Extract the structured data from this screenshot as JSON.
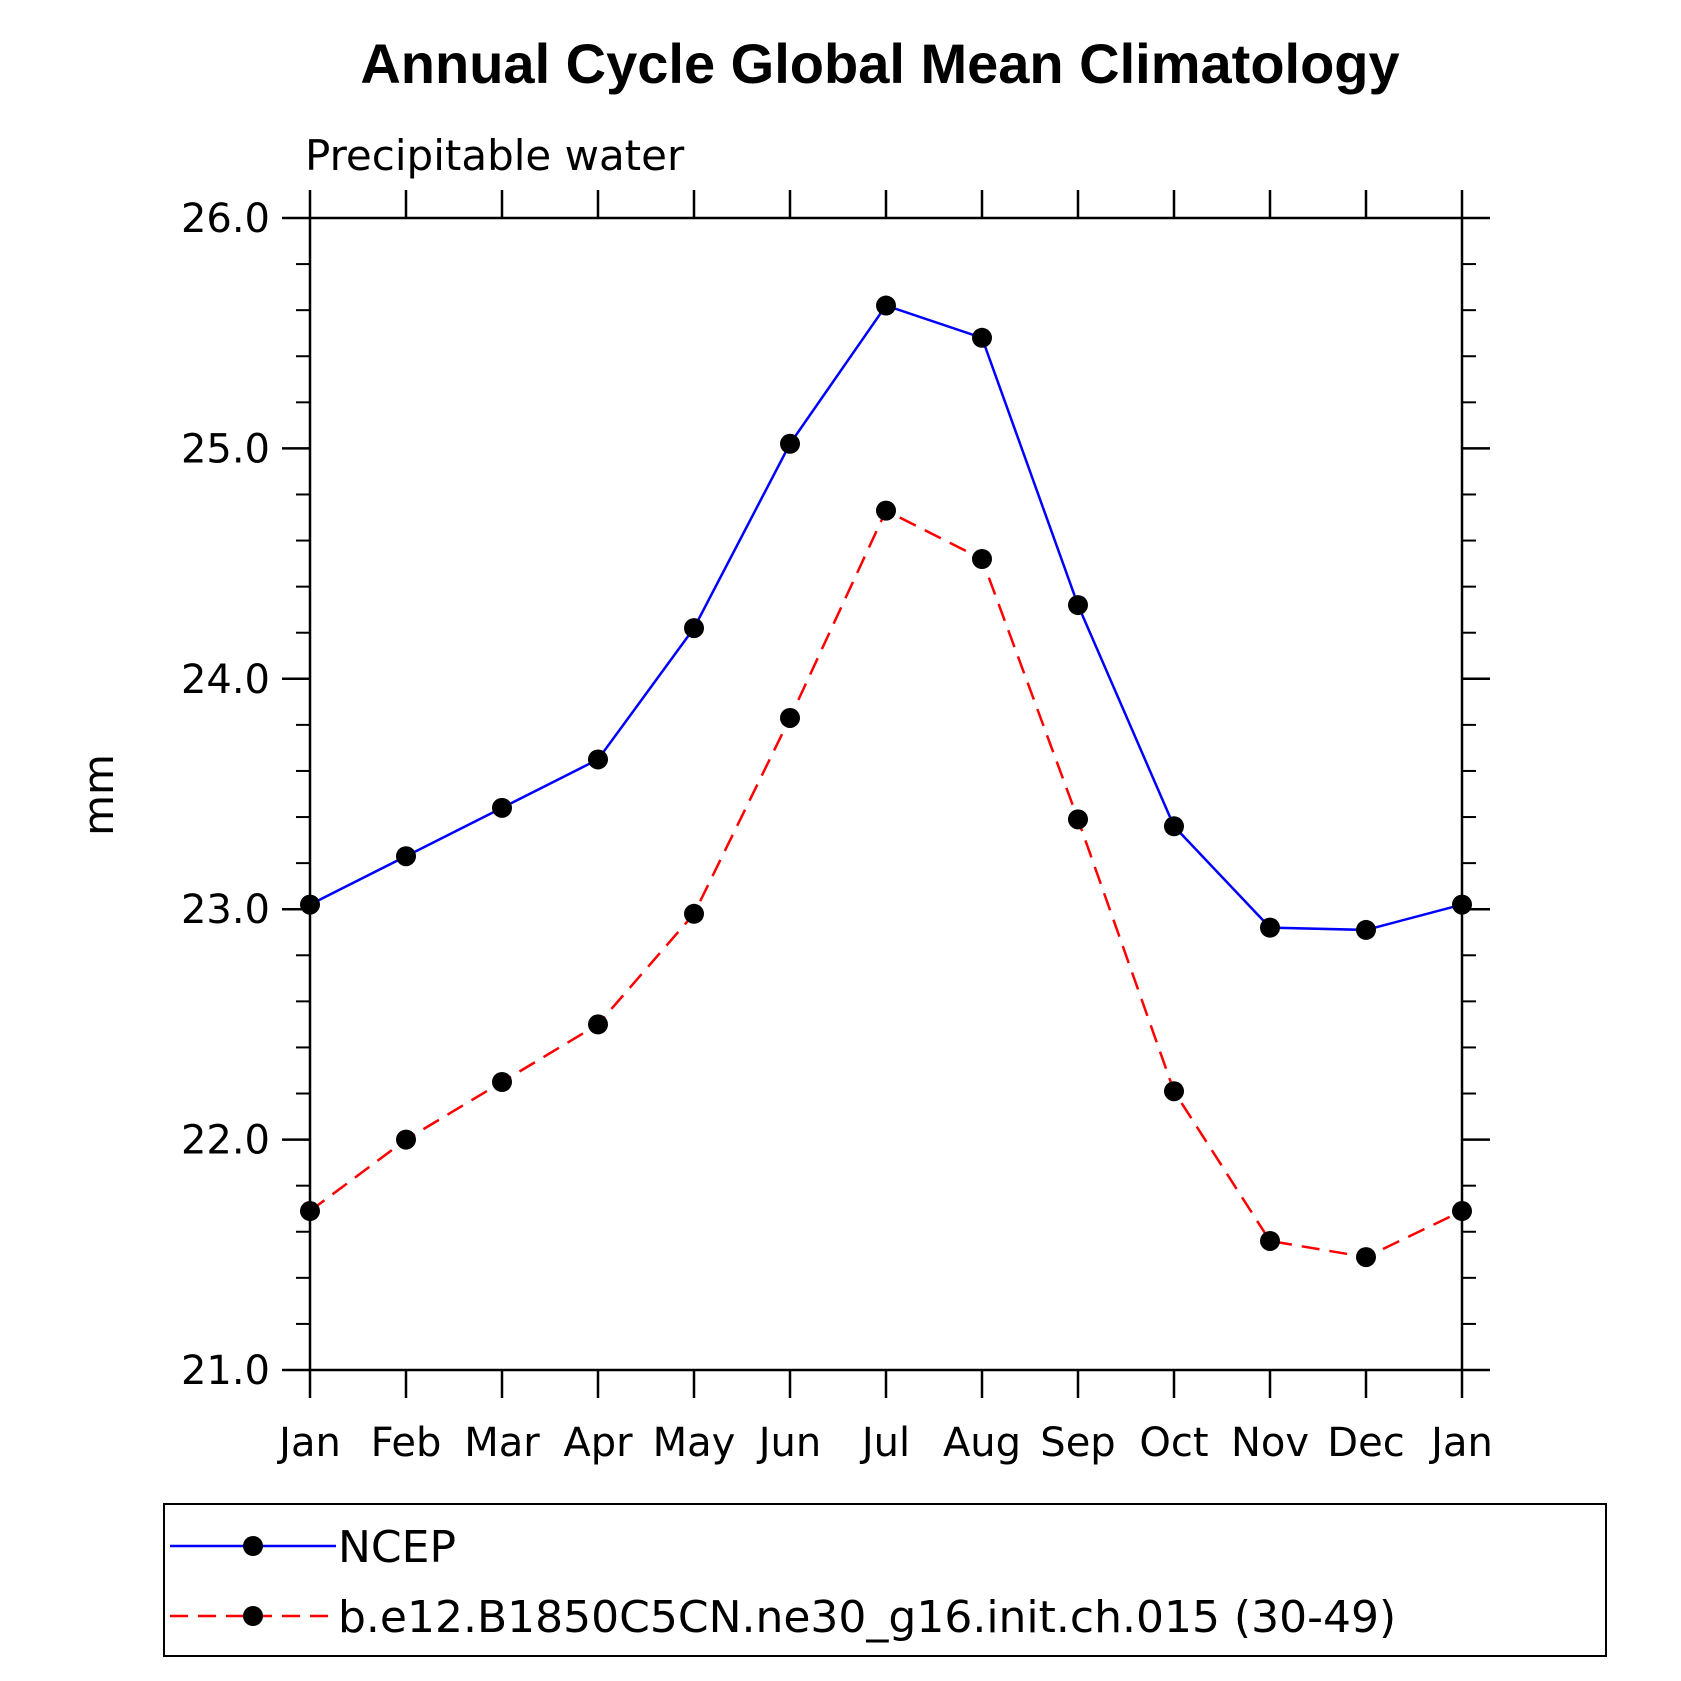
{
  "chart_data": {
    "type": "line",
    "title": "Annual Cycle Global Mean Climatology",
    "subtitle": "Precipitable water",
    "xlabel": "",
    "ylabel": "mm",
    "categories": [
      "Jan",
      "Feb",
      "Mar",
      "Apr",
      "May",
      "Jun",
      "Jul",
      "Aug",
      "Sep",
      "Oct",
      "Nov",
      "Dec",
      "Jan"
    ],
    "ylim": [
      21.0,
      26.0
    ],
    "y_ticks": [
      "21.0",
      "22.0",
      "23.0",
      "24.0",
      "25.0",
      "26.0"
    ],
    "grid": false,
    "legend_position": "bottom",
    "series": [
      {
        "name": "NCEP",
        "color": "#0000ff",
        "dash": "solid",
        "marker": "filled-circle",
        "values": [
          23.02,
          23.23,
          23.44,
          23.65,
          24.22,
          25.02,
          25.62,
          25.48,
          24.32,
          23.36,
          22.92,
          22.91,
          23.02
        ]
      },
      {
        "name": "b.e12.B1850C5CN.ne30_g16.init.ch.015 (30-49)",
        "color": "#ff0000",
        "dash": "dashed",
        "marker": "filled-circle",
        "values": [
          21.69,
          22.0,
          22.25,
          22.5,
          22.98,
          23.83,
          24.73,
          24.52,
          23.39,
          22.21,
          21.56,
          21.49,
          21.69
        ]
      }
    ]
  }
}
